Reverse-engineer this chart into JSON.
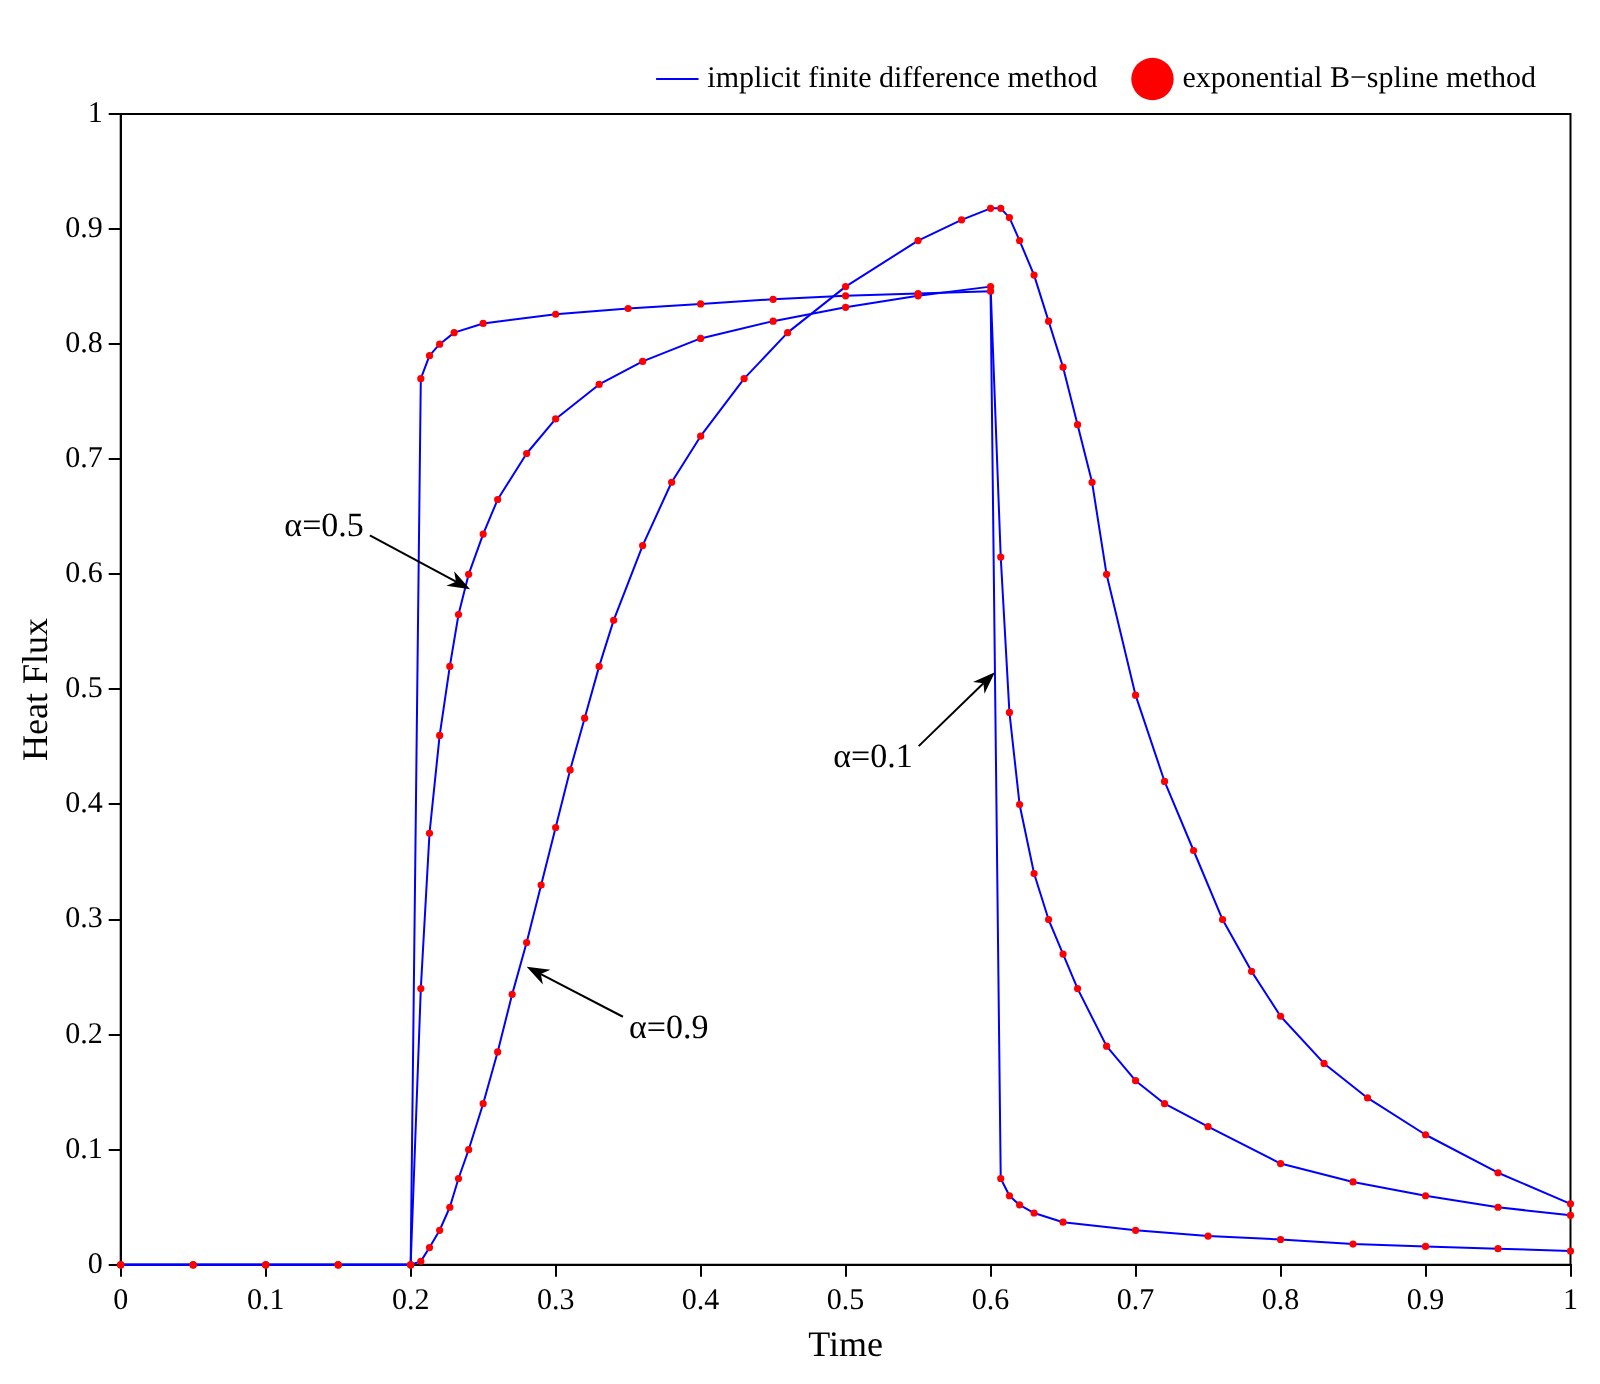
{
  "chart_data": {
    "type": "line",
    "xlabel": "Time",
    "ylabel": "Heat Flux",
    "xlim": [
      0,
      1
    ],
    "ylim": [
      0,
      1
    ],
    "xticks": [
      0,
      0.1,
      0.2,
      0.3,
      0.4,
      0.5,
      0.6,
      0.7,
      0.8,
      0.9,
      1
    ],
    "yticks": [
      0,
      0.1,
      0.2,
      0.3,
      0.4,
      0.5,
      0.6,
      0.7,
      0.8,
      0.9,
      1
    ],
    "grid": false,
    "legend": "top right",
    "series": [
      {
        "name": "implicit finite difference method",
        "type": "line",
        "marker": "none",
        "color": "#0000ff",
        "x": [
          0,
          0.05,
          0.1,
          0.15,
          0.2,
          0.207,
          0.213,
          0.22,
          0.23,
          0.25,
          0.3,
          0.35,
          0.4,
          0.45,
          0.5,
          0.55,
          0.6,
          0.607,
          0.613,
          0.62,
          0.63,
          0.65,
          0.7,
          0.75,
          0.8,
          0.85,
          0.9,
          0.95,
          1
        ],
        "values": [
          0,
          0,
          0,
          0,
          0,
          0.77,
          0.79,
          0.8,
          0.81,
          0.818,
          0.826,
          0.831,
          0.835,
          0.839,
          0.842,
          0.844,
          0.846,
          0.075,
          0.06,
          0.052,
          0.045,
          0.037,
          0.03,
          0.025,
          0.022,
          0.018,
          0.016,
          0.014,
          0.012
        ]
      },
      {
        "type": "line",
        "marker": "none",
        "color": "#0000ff",
        "x": [
          0,
          0.05,
          0.1,
          0.15,
          0.2,
          0.207,
          0.213,
          0.22,
          0.227,
          0.233,
          0.24,
          0.25,
          0.26,
          0.28,
          0.3,
          0.33,
          0.36,
          0.4,
          0.45,
          0.5,
          0.55,
          0.6,
          0.607,
          0.613,
          0.62,
          0.63,
          0.64,
          0.65,
          0.66,
          0.68,
          0.7,
          0.72,
          0.75,
          0.8,
          0.85,
          0.9,
          0.95,
          1
        ],
        "values": [
          0,
          0,
          0,
          0,
          0,
          0.24,
          0.375,
          0.46,
          0.52,
          0.565,
          0.6,
          0.635,
          0.665,
          0.705,
          0.735,
          0.765,
          0.785,
          0.805,
          0.82,
          0.832,
          0.842,
          0.85,
          0.615,
          0.48,
          0.4,
          0.34,
          0.3,
          0.27,
          0.24,
          0.19,
          0.16,
          0.14,
          0.12,
          0.088,
          0.072,
          0.06,
          0.05,
          0.043
        ]
      },
      {
        "type": "line",
        "marker": "none",
        "color": "#0000ff",
        "x": [
          0,
          0.05,
          0.1,
          0.15,
          0.2,
          0.207,
          0.213,
          0.22,
          0.227,
          0.233,
          0.24,
          0.25,
          0.26,
          0.27,
          0.28,
          0.29,
          0.3,
          0.31,
          0.32,
          0.33,
          0.34,
          0.36,
          0.38,
          0.4,
          0.43,
          0.46,
          0.5,
          0.55,
          0.58,
          0.6,
          0.607,
          0.613,
          0.62,
          0.63,
          0.64,
          0.65,
          0.66,
          0.67,
          0.68,
          0.7,
          0.72,
          0.74,
          0.76,
          0.78,
          0.8,
          0.83,
          0.86,
          0.9,
          0.95,
          1
        ],
        "values": [
          0,
          0,
          0,
          0,
          0,
          0.003,
          0.015,
          0.03,
          0.05,
          0.075,
          0.1,
          0.14,
          0.185,
          0.235,
          0.28,
          0.33,
          0.38,
          0.43,
          0.475,
          0.52,
          0.56,
          0.625,
          0.68,
          0.72,
          0.77,
          0.81,
          0.85,
          0.89,
          0.908,
          0.918,
          0.918,
          0.91,
          0.89,
          0.86,
          0.82,
          0.78,
          0.73,
          0.68,
          0.6,
          0.495,
          0.42,
          0.36,
          0.3,
          0.255,
          0.216,
          0.175,
          0.145,
          0.113,
          0.08,
          0.053
        ]
      },
      {
        "name": "exponential B−spline method",
        "type": "scatter",
        "marker": "circle",
        "color": "#ff0000",
        "x": [
          0,
          0.05,
          0.1,
          0.15,
          0.2,
          0.207,
          0.213,
          0.22,
          0.23,
          0.25,
          0.3,
          0.35,
          0.4,
          0.45,
          0.5,
          0.55,
          0.6,
          0.607,
          0.613,
          0.62,
          0.63,
          0.65,
          0.7,
          0.75,
          0.8,
          0.85,
          0.9,
          0.95,
          1
        ],
        "values": [
          0,
          0,
          0,
          0,
          0,
          0.77,
          0.79,
          0.8,
          0.81,
          0.818,
          0.826,
          0.831,
          0.835,
          0.839,
          0.842,
          0.844,
          0.846,
          0.075,
          0.06,
          0.052,
          0.045,
          0.037,
          0.03,
          0.025,
          0.022,
          0.018,
          0.016,
          0.014,
          0.012
        ]
      },
      {
        "type": "scatter",
        "marker": "circle",
        "color": "#ff0000",
        "x": [
          0,
          0.05,
          0.1,
          0.15,
          0.2,
          0.207,
          0.213,
          0.22,
          0.227,
          0.233,
          0.24,
          0.25,
          0.26,
          0.28,
          0.3,
          0.33,
          0.36,
          0.4,
          0.45,
          0.5,
          0.55,
          0.6,
          0.607,
          0.613,
          0.62,
          0.63,
          0.64,
          0.65,
          0.66,
          0.68,
          0.7,
          0.72,
          0.75,
          0.8,
          0.85,
          0.9,
          0.95,
          1
        ],
        "values": [
          0,
          0,
          0,
          0,
          0,
          0.24,
          0.375,
          0.46,
          0.52,
          0.565,
          0.6,
          0.635,
          0.665,
          0.705,
          0.735,
          0.765,
          0.785,
          0.805,
          0.82,
          0.832,
          0.842,
          0.85,
          0.615,
          0.48,
          0.4,
          0.34,
          0.3,
          0.27,
          0.24,
          0.19,
          0.16,
          0.14,
          0.12,
          0.088,
          0.072,
          0.06,
          0.05,
          0.043
        ]
      },
      {
        "type": "scatter",
        "marker": "circle",
        "color": "#ff0000",
        "x": [
          0,
          0.05,
          0.1,
          0.15,
          0.2,
          0.207,
          0.213,
          0.22,
          0.227,
          0.233,
          0.24,
          0.25,
          0.26,
          0.27,
          0.28,
          0.29,
          0.3,
          0.31,
          0.32,
          0.33,
          0.34,
          0.36,
          0.38,
          0.4,
          0.43,
          0.46,
          0.5,
          0.55,
          0.58,
          0.6,
          0.607,
          0.613,
          0.62,
          0.63,
          0.64,
          0.65,
          0.66,
          0.67,
          0.68,
          0.7,
          0.72,
          0.74,
          0.76,
          0.78,
          0.8,
          0.83,
          0.86,
          0.9,
          0.95,
          1
        ],
        "values": [
          0,
          0,
          0,
          0,
          0,
          0.003,
          0.015,
          0.03,
          0.05,
          0.075,
          0.1,
          0.14,
          0.185,
          0.235,
          0.28,
          0.33,
          0.38,
          0.43,
          0.475,
          0.52,
          0.56,
          0.625,
          0.68,
          0.72,
          0.77,
          0.81,
          0.85,
          0.89,
          0.908,
          0.918,
          0.918,
          0.91,
          0.89,
          0.86,
          0.82,
          0.78,
          0.73,
          0.68,
          0.6,
          0.495,
          0.42,
          0.36,
          0.3,
          0.255,
          0.216,
          0.175,
          0.145,
          0.113,
          0.08,
          0.053
        ]
      }
    ],
    "annotations": [
      {
        "text": "α=0.5",
        "x": 0.241,
        "y": 0.587
      },
      {
        "text": "α=0.1",
        "x": 0.603,
        "y": 0.515
      },
      {
        "text": "α=0.9",
        "x": 0.28,
        "y": 0.259
      }
    ]
  }
}
